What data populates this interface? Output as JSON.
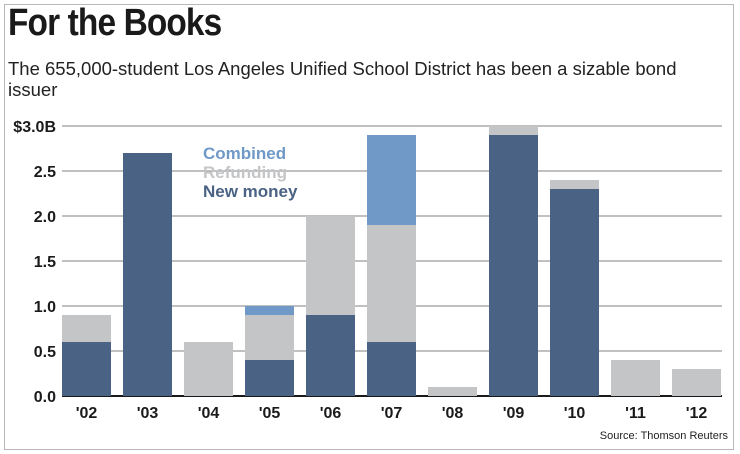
{
  "title": "For the Books",
  "subtitle": "The 655,000-student Los Angeles Unified School District has been a sizable bond issuer",
  "source": "Source: Thomson Reuters",
  "colors": {
    "new_money": "#4a6284",
    "refunding": "#c4c5c7",
    "combined": "#7099c8",
    "grid": "#9a9a9a",
    "axis": "#1a1a1a"
  },
  "chart_data": {
    "type": "bar",
    "stacked": true,
    "title": "For the Books",
    "xlabel": "",
    "ylabel": "",
    "ylim": [
      0,
      3.0
    ],
    "y_ticks": [
      0.0,
      0.5,
      1.0,
      1.5,
      2.0,
      2.5,
      3.0
    ],
    "y_tick_labels": [
      "0.0",
      "0.5",
      "1.0",
      "1.5",
      "2.0",
      "2.5",
      "$3.0B"
    ],
    "categories": [
      "'02",
      "'03",
      "'04",
      "'05",
      "'06",
      "'07",
      "'08",
      "'09",
      "'10",
      "'11",
      "'12"
    ],
    "series": [
      {
        "name": "New money",
        "color": "#4a6284",
        "values": [
          0.6,
          2.7,
          0,
          0.4,
          0.9,
          0.6,
          0,
          2.9,
          2.3,
          0,
          0
        ]
      },
      {
        "name": "Refunding",
        "color": "#c4c5c7",
        "values": [
          0.3,
          0,
          0.6,
          0.5,
          1.1,
          1.3,
          0.1,
          0.1,
          0.1,
          0.4,
          0.3
        ]
      },
      {
        "name": "Combined",
        "color": "#7099c8",
        "values": [
          0,
          0,
          0,
          0.1,
          0,
          1.0,
          0,
          0,
          0,
          0,
          0
        ]
      }
    ],
    "legend": [
      "Combined",
      "Refunding",
      "New money"
    ],
    "legend_position": "top-left",
    "grid": true
  }
}
